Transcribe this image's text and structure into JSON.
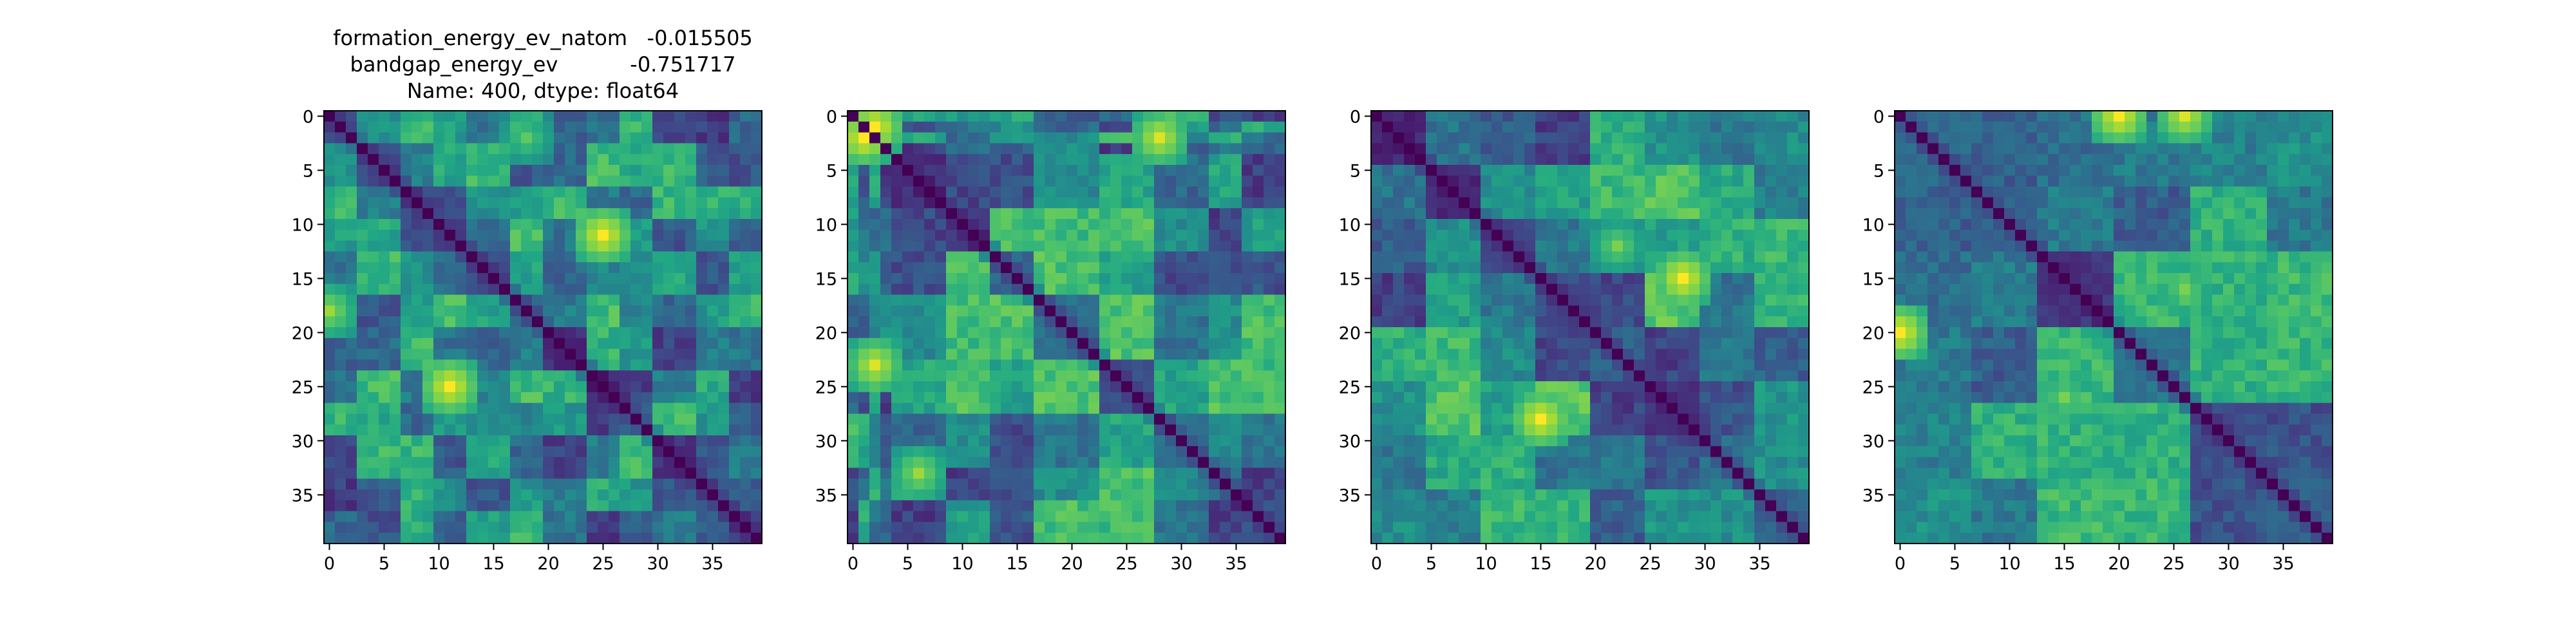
{
  "figure": {
    "title_lines": [
      "formation_energy_ev_natom   -0.015505",
      "bandgap_energy_ev           -0.751717",
      "Name: 400, dtype: float64"
    ]
  },
  "chart_data": [
    {
      "type": "heatmap",
      "colormap": "viridis",
      "size": 40,
      "title": "formation_energy_ev_natom   -0.015505 / bandgap_energy_ev           -0.751717 / Name: 400, dtype: float64",
      "xticks": [
        0,
        5,
        10,
        15,
        20,
        25,
        30,
        35
      ],
      "yticks": [
        0,
        5,
        10,
        15,
        20,
        25,
        30,
        35
      ],
      "value_range": [
        0,
        1
      ],
      "diagonal": 0,
      "block_groups": [
        [
          0,
          2
        ],
        [
          3,
          6
        ],
        [
          7,
          9
        ],
        [
          10,
          12
        ],
        [
          13,
          16
        ],
        [
          17,
          19
        ],
        [
          20,
          23
        ],
        [
          24,
          26
        ],
        [
          27,
          29
        ],
        [
          30,
          33
        ],
        [
          34,
          36
        ],
        [
          37,
          39
        ]
      ],
      "hotspots": [
        {
          "row": 11,
          "col": 25,
          "value": 1.0
        },
        {
          "row": 25,
          "col": 11,
          "value": 1.0
        },
        {
          "row": 18,
          "col": 0,
          "value": 0.85
        },
        {
          "row": 2,
          "col": 18,
          "value": 0.75
        }
      ]
    },
    {
      "type": "heatmap",
      "colormap": "viridis",
      "size": 40,
      "xticks": [
        0,
        5,
        10,
        15,
        20,
        25,
        30,
        35
      ],
      "yticks": [
        0,
        5,
        10,
        15,
        20,
        25,
        30,
        35
      ],
      "value_range": [
        0,
        1
      ],
      "diagonal": 0,
      "block_groups": [
        [
          0,
          0
        ],
        [
          1,
          1
        ],
        [
          2,
          2
        ],
        [
          3,
          3
        ],
        [
          4,
          8
        ],
        [
          9,
          12
        ],
        [
          13,
          16
        ],
        [
          17,
          22
        ],
        [
          23,
          27
        ],
        [
          28,
          32
        ],
        [
          33,
          35
        ],
        [
          36,
          39
        ]
      ],
      "hotspots": [
        {
          "row": 1,
          "col": 2,
          "value": 1.0
        },
        {
          "row": 2,
          "col": 1,
          "value": 1.0
        },
        {
          "row": 2,
          "col": 28,
          "value": 0.95
        },
        {
          "row": 23,
          "col": 2,
          "value": 0.95
        },
        {
          "row": 33,
          "col": 6,
          "value": 0.85
        }
      ]
    },
    {
      "type": "heatmap",
      "colormap": "viridis",
      "size": 40,
      "xticks": [
        0,
        5,
        10,
        15,
        20,
        25,
        30,
        35
      ],
      "yticks": [
        0,
        5,
        10,
        15,
        20,
        25,
        30,
        35
      ],
      "value_range": [
        0,
        1
      ],
      "diagonal": 0,
      "block_groups": [
        [
          0,
          4
        ],
        [
          5,
          9
        ],
        [
          10,
          14
        ],
        [
          15,
          19
        ],
        [
          20,
          24
        ],
        [
          25,
          29
        ],
        [
          30,
          34
        ],
        [
          35,
          39
        ]
      ],
      "hotspots": [
        {
          "row": 15,
          "col": 28,
          "value": 1.0
        },
        {
          "row": 28,
          "col": 15,
          "value": 1.0
        },
        {
          "row": 12,
          "col": 22,
          "value": 0.8
        }
      ]
    },
    {
      "type": "heatmap",
      "colormap": "viridis",
      "size": 40,
      "xticks": [
        0,
        5,
        10,
        15,
        20,
        25,
        30,
        35
      ],
      "yticks": [
        0,
        5,
        10,
        15,
        20,
        25,
        30,
        35
      ],
      "value_range": [
        0,
        1
      ],
      "diagonal": 0,
      "block_groups": [
        [
          0,
          6
        ],
        [
          7,
          12
        ],
        [
          13,
          19
        ],
        [
          20,
          26
        ],
        [
          27,
          33
        ],
        [
          34,
          39
        ]
      ],
      "hotspots": [
        {
          "row": 0,
          "col": 20,
          "value": 1.0
        },
        {
          "row": 20,
          "col": 0,
          "value": 1.0
        },
        {
          "row": 0,
          "col": 26,
          "value": 0.95
        },
        {
          "row": 16,
          "col": 26,
          "value": 0.8
        },
        {
          "row": 26,
          "col": 15,
          "value": 0.8
        }
      ]
    }
  ]
}
